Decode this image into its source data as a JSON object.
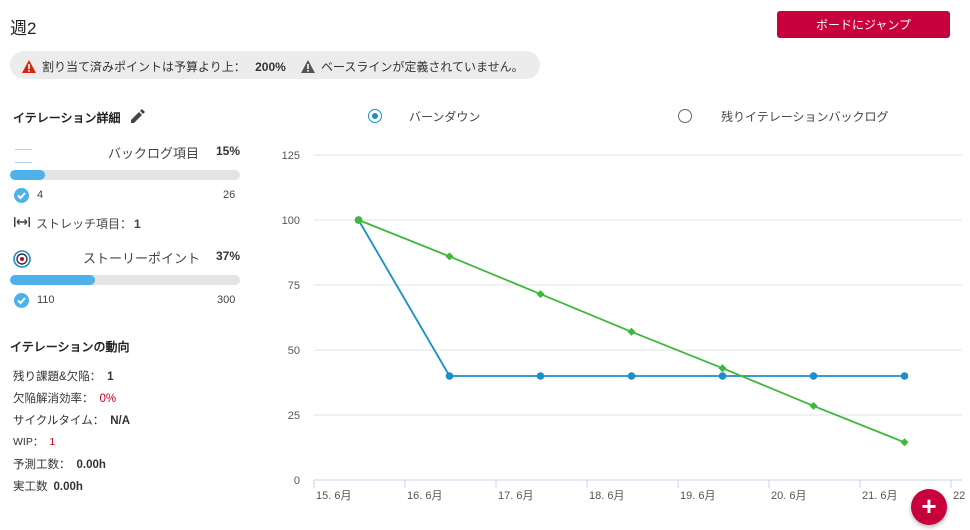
{
  "header": {
    "title": "週2",
    "jump_button": "ボードにジャンプ"
  },
  "warnings": {
    "w1_text": "割り当て済みポイントは予算より上：",
    "w1_value": "200%",
    "w2_text": "ベースラインが定義されていません。"
  },
  "details": {
    "title": "イテレーション詳細",
    "backlog": {
      "label": "バックログ項目",
      "pct": "15%",
      "progress": 0.15,
      "done": "4",
      "total": "26"
    },
    "stretch": {
      "label": "ストレッチ項目：",
      "value": "1"
    },
    "story": {
      "label": "ストーリーポイント",
      "pct": "37%",
      "progress": 0.37,
      "done": "110",
      "total": "300"
    }
  },
  "trends": {
    "title": "イテレーションの動向",
    "items": [
      {
        "label": "残り課題&欠陥：",
        "value": "1",
        "red": false
      },
      {
        "label": "欠陥解消効率：",
        "value": "0%",
        "red": true
      },
      {
        "label": "サイクルタイム：",
        "value": "N/A",
        "red": false
      },
      {
        "label": "WIP：",
        "value": "1",
        "red": true
      },
      {
        "label": "予測工数：",
        "value": "0.00h",
        "red": false
      },
      {
        "label": "実工数",
        "value": "0.00h",
        "red": false
      }
    ]
  },
  "chart_toggle": {
    "option1": "バーンダウン",
    "option2": "残りイテレーションバックログ",
    "selected": "option1"
  },
  "colors": {
    "accent": "#c8003c",
    "blue": "#1a8fc9",
    "green": "#3cb83c",
    "bar": "#4fb1e9"
  },
  "chart_data": {
    "type": "line",
    "categories": [
      "15. 6月",
      "16. 6月",
      "17. 6月",
      "18. 6月",
      "19. 6月",
      "20. 6月",
      "21. 6月",
      "22"
    ],
    "y_ticks": [
      "125",
      "100",
      "75",
      "50",
      "25",
      "0"
    ],
    "ylim": [
      0,
      125
    ],
    "series": [
      {
        "color": "#1a8fc9",
        "x": [
          0.5,
          1.5,
          2.5,
          3.5,
          4.5,
          5.5,
          6.5
        ],
        "values": [
          100,
          40,
          40,
          40,
          40,
          40,
          40
        ]
      },
      {
        "color": "#3cb83c",
        "x": [
          0.5,
          1.5,
          2.5,
          3.5,
          4.5,
          5.5,
          6.5
        ],
        "values": [
          100,
          86,
          71.5,
          57,
          43,
          28.5,
          14.5
        ]
      }
    ],
    "grid": true
  }
}
